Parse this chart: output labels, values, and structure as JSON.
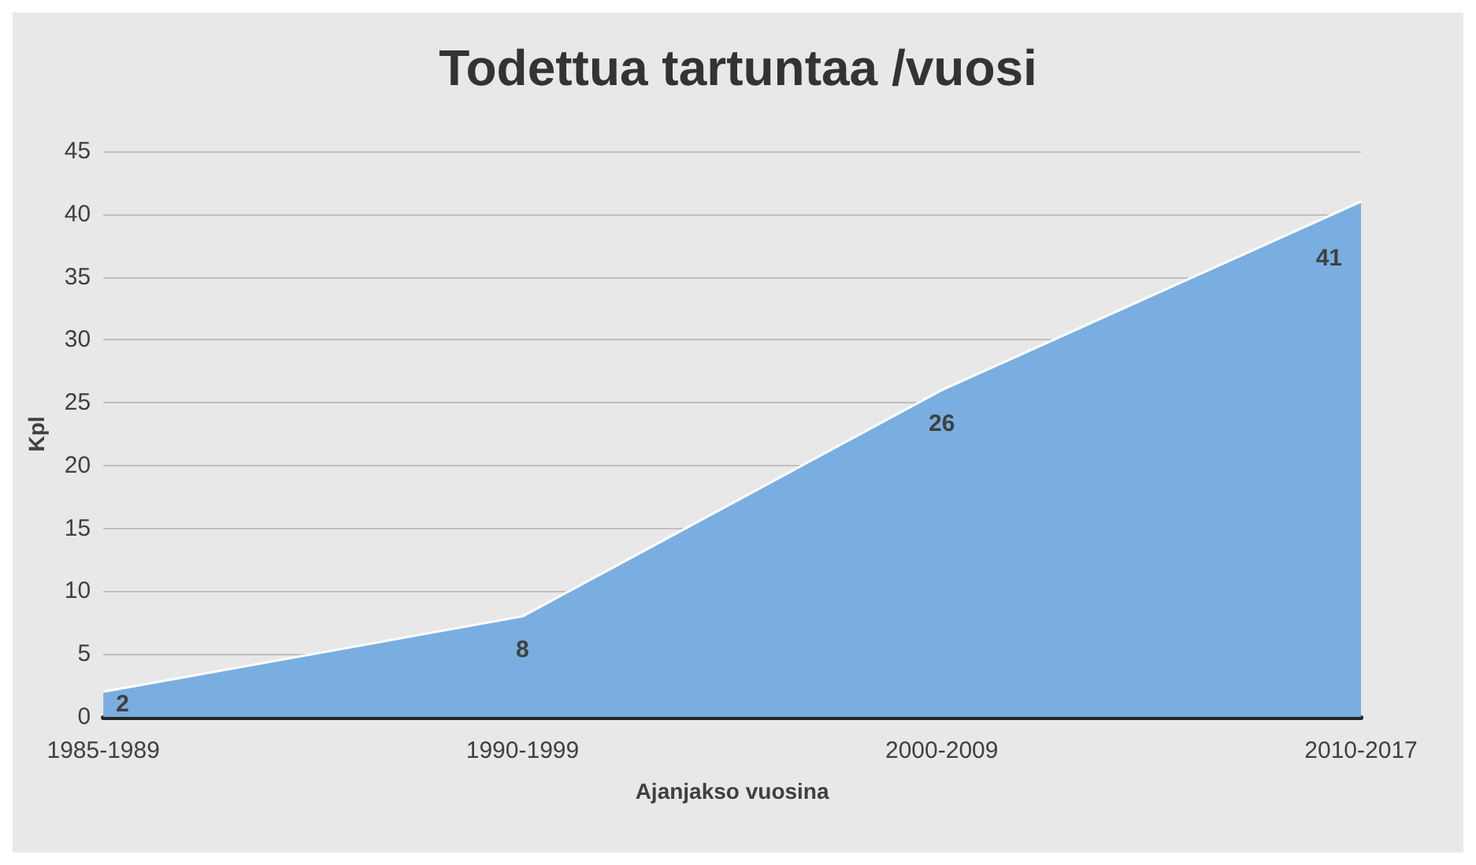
{
  "chart_data": {
    "type": "area",
    "title": "Todettua tartuntaa /vuosi",
    "xlabel": "Ajanjakso vuosina",
    "ylabel": "Kpl",
    "categories": [
      "1985-1989",
      "1990-1999",
      "2000-2009",
      "2010-2017"
    ],
    "values": [
      2,
      8,
      26,
      41
    ],
    "color": "#7aaee0",
    "ylim": [
      0,
      45
    ],
    "yticks": [
      0,
      5,
      10,
      15,
      20,
      25,
      30,
      35,
      40,
      45
    ],
    "grid": "y",
    "data_labels": true
  }
}
